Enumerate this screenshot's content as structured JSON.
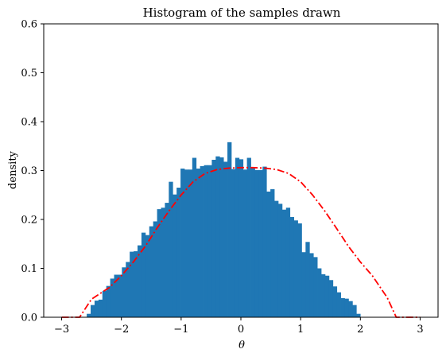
{
  "chart_data": {
    "type": "bar",
    "title": "Histogram of the samples drawn",
    "xlabel": "θ",
    "ylabel": "density",
    "xlim": [
      -3.3,
      3.3
    ],
    "ylim": [
      0,
      0.6
    ],
    "x_ticks": [
      -3,
      -2,
      -1,
      0,
      1,
      2,
      3
    ],
    "x_tick_labels": [
      "−3",
      "−2",
      "−1",
      "0",
      "1",
      "2",
      "3"
    ],
    "y_ticks": [
      0.0,
      0.1,
      0.2,
      0.3,
      0.4,
      0.5,
      0.6
    ],
    "y_tick_labels": [
      "0.0",
      "0.1",
      "0.2",
      "0.3",
      "0.4",
      "0.5",
      "0.6"
    ],
    "grid": false,
    "colors": {
      "bars": "#1f77b4",
      "curve": "#ff0000"
    },
    "histogram": {
      "bin_start": -2.58,
      "bin_width": 0.0654,
      "values": [
        0.007,
        0.025,
        0.034,
        0.036,
        0.054,
        0.064,
        0.079,
        0.087,
        0.087,
        0.102,
        0.113,
        0.134,
        0.135,
        0.147,
        0.173,
        0.168,
        0.186,
        0.196,
        0.221,
        0.224,
        0.234,
        0.277,
        0.251,
        0.265,
        0.304,
        0.302,
        0.302,
        0.326,
        0.304,
        0.309,
        0.311,
        0.311,
        0.322,
        0.329,
        0.327,
        0.318,
        0.358,
        0.303,
        0.326,
        0.323,
        0.302,
        0.326,
        0.305,
        0.301,
        0.301,
        0.308,
        0.257,
        0.262,
        0.238,
        0.232,
        0.22,
        0.224,
        0.205,
        0.198,
        0.192,
        0.133,
        0.154,
        0.131,
        0.123,
        0.1,
        0.088,
        0.085,
        0.076,
        0.063,
        0.051,
        0.039,
        0.038,
        0.033,
        0.025,
        0.007
      ]
    },
    "curve": {
      "style": "dash-dot",
      "x": [
        -3.0,
        -2.7,
        -2.5,
        -2.2,
        -2.0,
        -1.8,
        -1.6,
        -1.4,
        -1.2,
        -1.0,
        -0.8,
        -0.6,
        -0.4,
        -0.2,
        0.0,
        0.2,
        0.4,
        0.6,
        0.8,
        1.0,
        1.2,
        1.4,
        1.6,
        1.8,
        2.0,
        2.2,
        2.45,
        2.6,
        2.7,
        3.0
      ],
      "y": [
        0.0,
        0.0,
        0.037,
        0.061,
        0.085,
        0.113,
        0.145,
        0.183,
        0.218,
        0.25,
        0.277,
        0.294,
        0.302,
        0.305,
        0.306,
        0.306,
        0.305,
        0.302,
        0.294,
        0.277,
        0.25,
        0.218,
        0.182,
        0.145,
        0.113,
        0.085,
        0.04,
        0.0,
        0.0,
        0.0
      ]
    }
  }
}
